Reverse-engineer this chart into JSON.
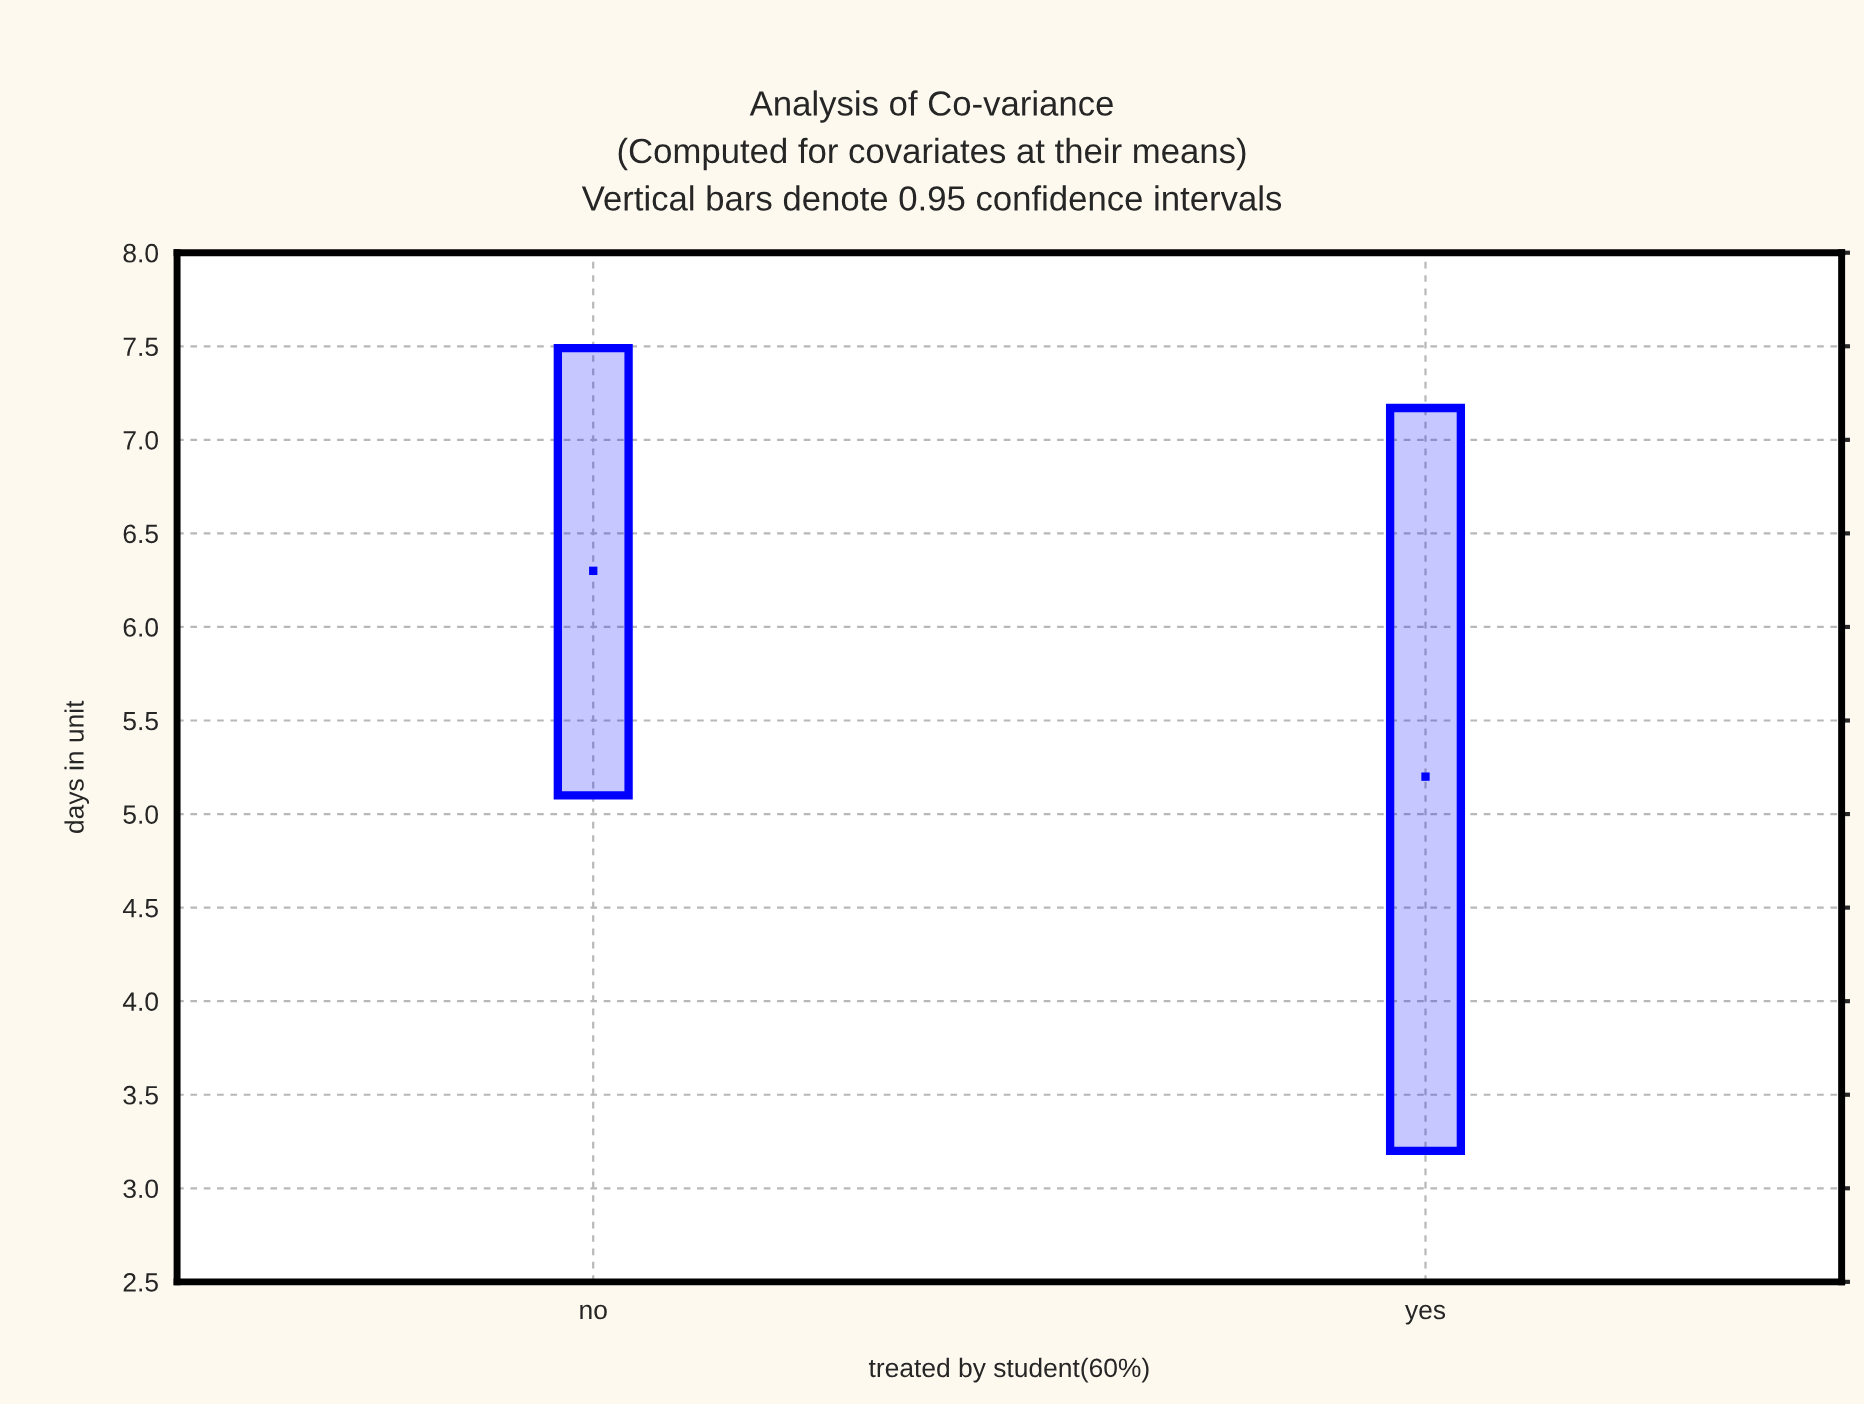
{
  "chart_data": {
    "type": "bar",
    "title": "Analysis of Co-variance\n(Computed for covariates at their means)\nVertical bars denote 0.95 confidence intervals",
    "xlabel": "treated by student(60%)",
    "ylabel": "days in unit",
    "categories": [
      "no",
      "yes"
    ],
    "series": [
      {
        "color": "#0000ff",
        "base": [
          5.1,
          3.2
        ],
        "values": [
          2.39,
          3.97
        ]
      },
      {
        "type": "scatter",
        "color": "#0000ff",
        "marker": "square",
        "x": [
          "no",
          "yes"
        ],
        "values": [
          6.3,
          5.2
        ]
      }
    ],
    "ylim": [
      2.5,
      8.0
    ],
    "yticks": [
      {
        "value": 2.5,
        "label": "2.5"
      },
      {
        "value": 3.0,
        "label": "3.0"
      },
      {
        "value": 3.5,
        "label": "3.5"
      },
      {
        "value": 4.0,
        "label": "4.0"
      },
      {
        "value": 4.5,
        "label": "4.5"
      },
      {
        "value": 5.0,
        "label": "5.0"
      },
      {
        "value": 5.5,
        "label": "5.5"
      },
      {
        "value": 6.0,
        "label": "6.0"
      },
      {
        "value": 6.5,
        "label": "6.5"
      },
      {
        "value": 7.0,
        "label": "7.0"
      },
      {
        "value": 7.5,
        "label": "7.5"
      },
      {
        "value": 8.0,
        "label": "8.0"
      }
    ],
    "grid": true
  }
}
